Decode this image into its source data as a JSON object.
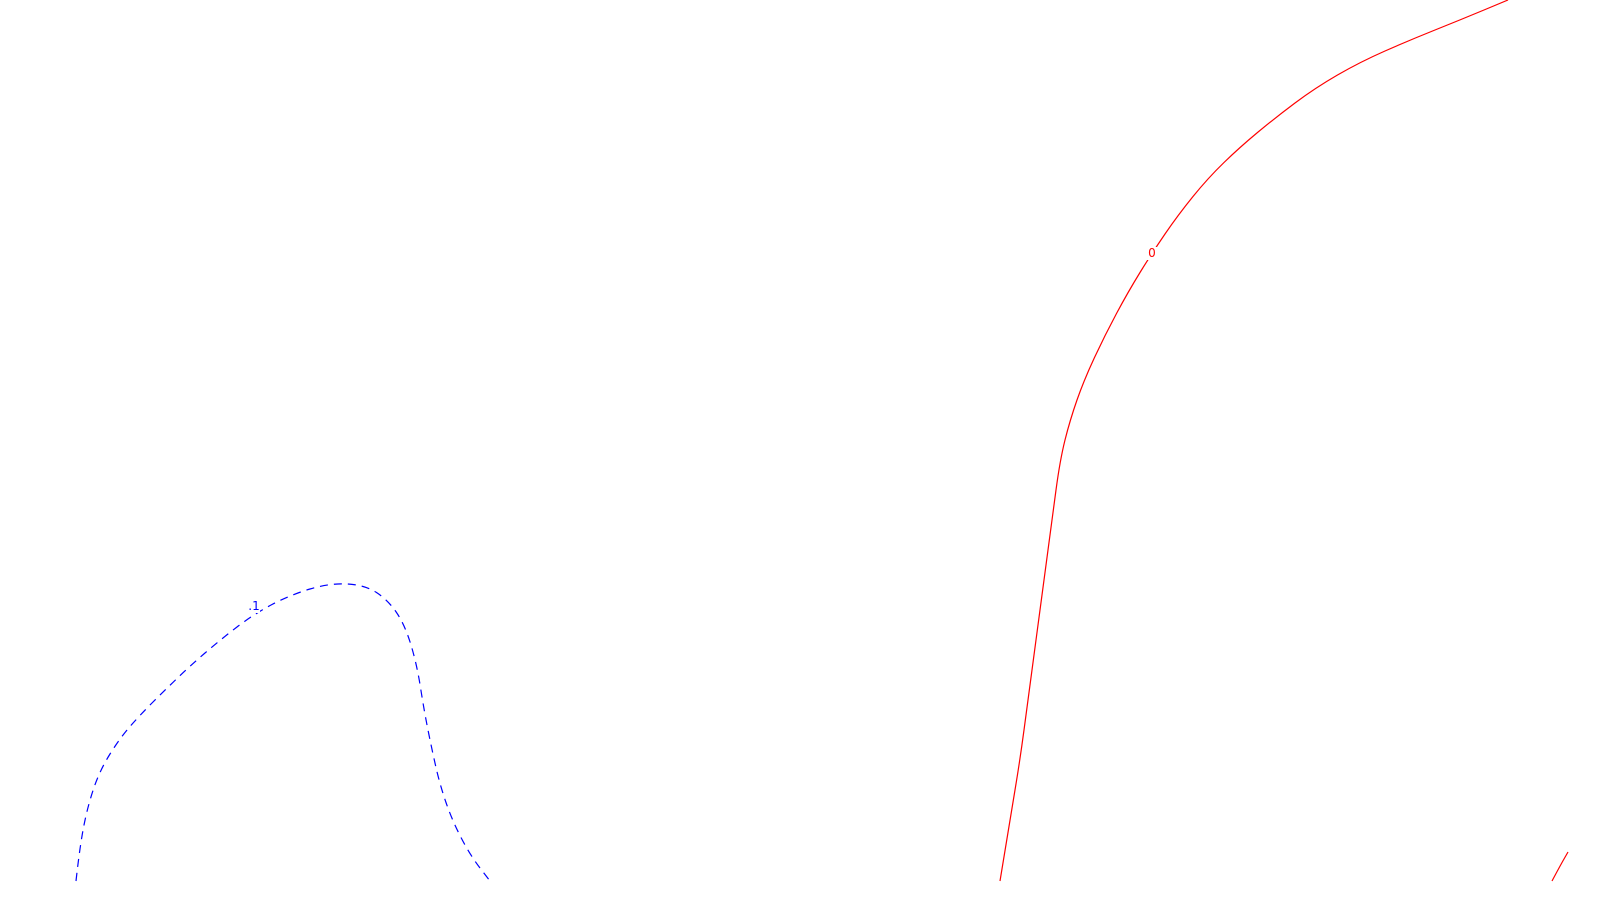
{
  "chart_data": {
    "type": "contour",
    "title": "",
    "xlabel": "",
    "ylabel": "",
    "grid": false,
    "legend": "none",
    "contours": [
      {
        "level": "0",
        "label": "0",
        "color": "#ff0000",
        "style": "solid",
        "points": [
          [
            1000,
            881
          ],
          [
            1010,
            820
          ],
          [
            1020,
            760
          ],
          [
            1028,
            700
          ],
          [
            1036,
            640
          ],
          [
            1044,
            580
          ],
          [
            1052,
            520
          ],
          [
            1060,
            460
          ],
          [
            1070,
            420
          ],
          [
            1084,
            380
          ],
          [
            1105,
            335
          ],
          [
            1128,
            292
          ],
          [
            1152,
            253
          ],
          [
            1178,
            215
          ],
          [
            1208,
            178
          ],
          [
            1240,
            147
          ],
          [
            1275,
            118
          ],
          [
            1315,
            88
          ],
          [
            1360,
            62
          ],
          [
            1410,
            40
          ],
          [
            1460,
            20
          ],
          [
            1508,
            0
          ]
        ]
      },
      {
        "level": "0",
        "label": "",
        "color": "#ff0000",
        "style": "solid",
        "points": [
          [
            1552,
            881
          ],
          [
            1560,
            866
          ],
          [
            1568,
            852
          ]
        ]
      },
      {
        "level": ".1",
        "label": ".1",
        "color": "#0000ff",
        "style": "dashed",
        "points": [
          [
            76,
            881
          ],
          [
            80,
            845
          ],
          [
            88,
            805
          ],
          [
            100,
            770
          ],
          [
            120,
            738
          ],
          [
            140,
            715
          ],
          [
            165,
            690
          ],
          [
            190,
            666
          ],
          [
            220,
            640
          ],
          [
            254,
            614
          ],
          [
            290,
            595
          ],
          [
            330,
            583
          ],
          [
            365,
            585
          ],
          [
            388,
            600
          ],
          [
            405,
            625
          ],
          [
            417,
            665
          ],
          [
            424,
            710
          ],
          [
            432,
            750
          ],
          [
            440,
            785
          ],
          [
            452,
            820
          ],
          [
            470,
            855
          ],
          [
            490,
            881
          ]
        ]
      }
    ]
  }
}
